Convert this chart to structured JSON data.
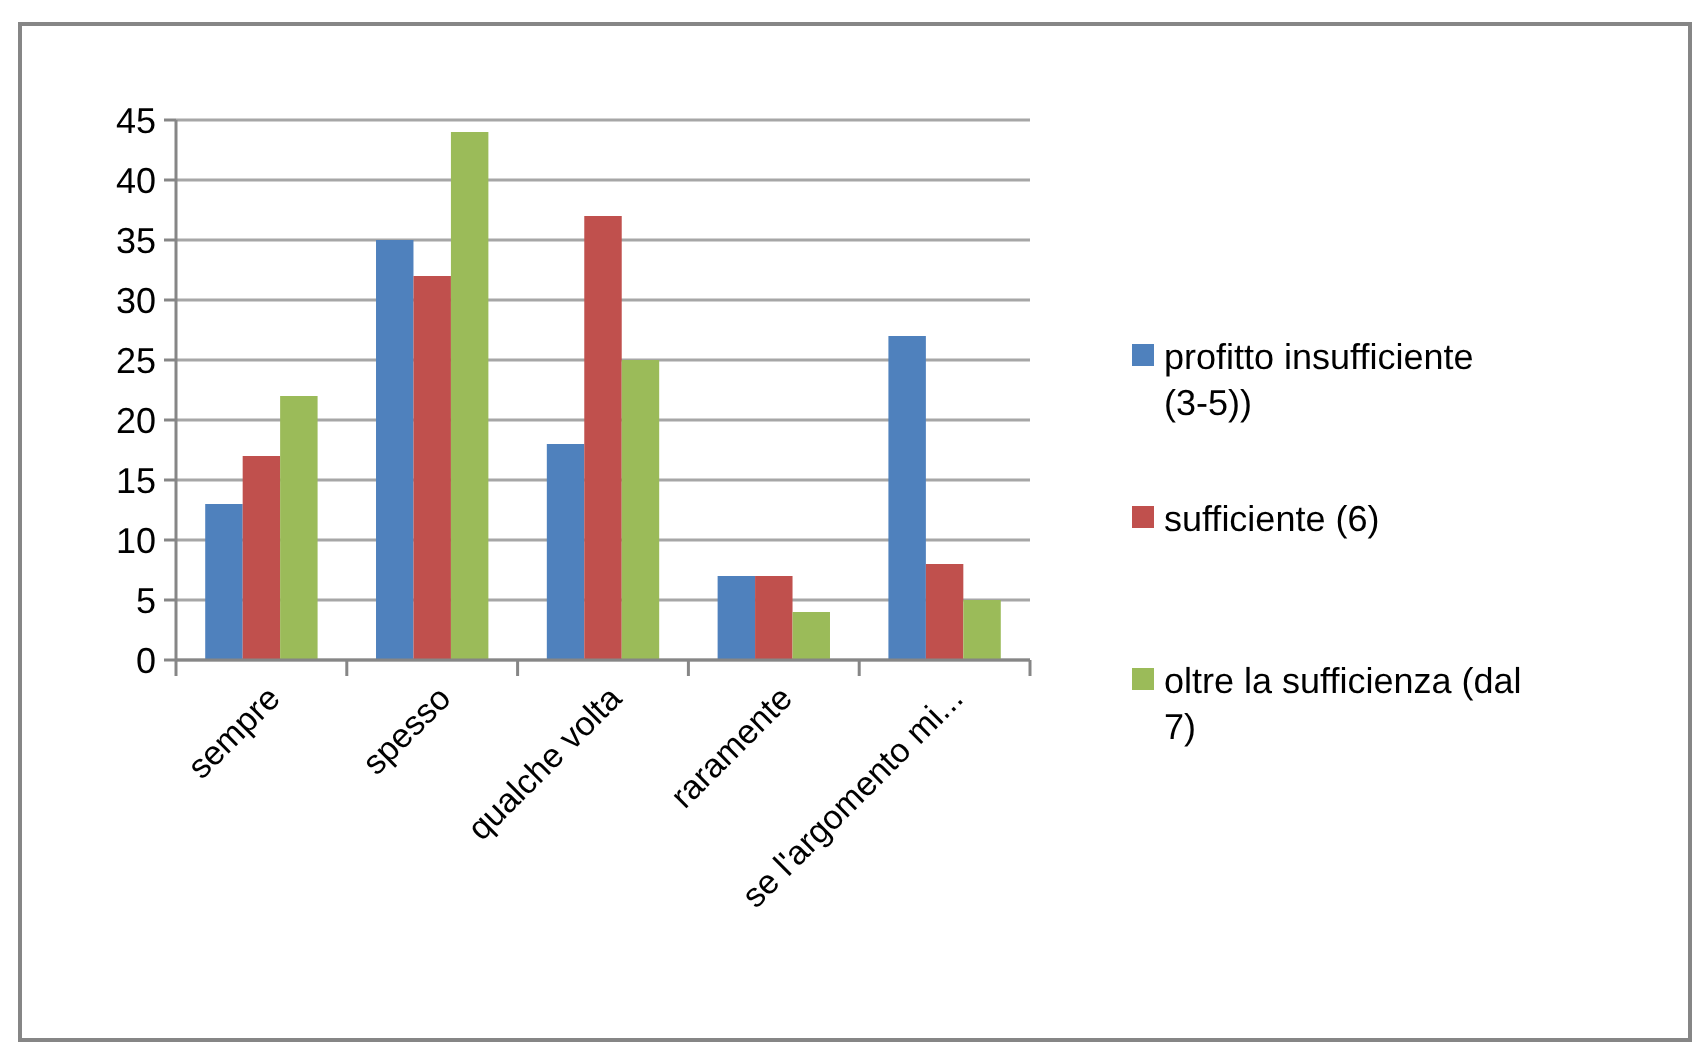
{
  "chart_data": {
    "type": "bar",
    "categories": [
      "sempre",
      "spesso",
      "qualche volta",
      "raramente",
      "se l'argomento mi..."
    ],
    "series": [
      {
        "name": "profitto insufficiente (3-5))",
        "color": "#4f81bd",
        "values": [
          13,
          35,
          18,
          7,
          27
        ]
      },
      {
        "name": "sufficiente (6)",
        "color": "#c0504d",
        "values": [
          17,
          32,
          37,
          7,
          8
        ]
      },
      {
        "name": "oltre la sufficienza (dal 7)",
        "color": "#9bbb59",
        "values": [
          22,
          44,
          25,
          4,
          5
        ]
      }
    ],
    "ylim": [
      0,
      45
    ],
    "yticks": [
      0,
      5,
      10,
      15,
      20,
      25,
      30,
      35,
      40,
      45
    ],
    "grid": "y",
    "legend": "right"
  }
}
